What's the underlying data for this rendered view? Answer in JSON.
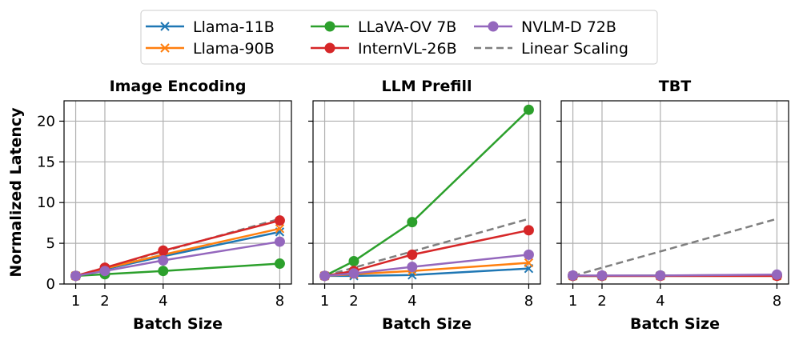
{
  "legend": {
    "location": "upper-center",
    "entries": [
      {
        "name": "Llama-11B",
        "color": "#1f77b4",
        "marker": "x",
        "dashed": false
      },
      {
        "name": "Llama-90B",
        "color": "#ff7f0e",
        "marker": "x",
        "dashed": false
      },
      {
        "name": "LLaVA-OV 7B",
        "color": "#2ca02c",
        "marker": "o",
        "dashed": false
      },
      {
        "name": "InternVL-26B",
        "color": "#d62728",
        "marker": "o",
        "dashed": false
      },
      {
        "name": "NVLM-D 72B",
        "color": "#9467bd",
        "marker": "o",
        "dashed": false
      },
      {
        "name": "Linear Scaling",
        "color": "#7f7f7f",
        "marker": "none",
        "dashed": true
      }
    ]
  },
  "chart_data": [
    {
      "type": "line",
      "title": "Image Encoding",
      "xlabel": "Batch Size",
      "ylabel": "Normalized Latency",
      "x": [
        1,
        2,
        4,
        8
      ],
      "xticks": [
        "1",
        "2",
        "4",
        "8"
      ],
      "yticks": [
        "0",
        "5",
        "10",
        "15",
        "20"
      ],
      "xlim": [
        0.6,
        8.4
      ],
      "ylim": [
        0,
        22.5
      ],
      "grid": true,
      "series": [
        {
          "name": "Linear Scaling",
          "values": [
            1,
            2,
            4,
            8
          ]
        },
        {
          "name": "Llama-11B",
          "values": [
            1.0,
            1.8,
            3.4,
            6.4
          ]
        },
        {
          "name": "Llama-90B",
          "values": [
            1.0,
            1.9,
            3.6,
            6.8
          ]
        },
        {
          "name": "LLaVA-OV 7B",
          "values": [
            1.0,
            1.2,
            1.6,
            2.5
          ]
        },
        {
          "name": "InternVL-26B",
          "values": [
            1.0,
            2.0,
            4.1,
            7.8
          ]
        },
        {
          "name": "NVLM-D 72B",
          "values": [
            1.0,
            1.6,
            2.9,
            5.2
          ]
        }
      ]
    },
    {
      "type": "line",
      "title": "LLM Prefill",
      "xlabel": "Batch Size",
      "ylabel": "",
      "x": [
        1,
        2,
        4,
        8
      ],
      "xticks": [
        "1",
        "2",
        "4",
        "8"
      ],
      "yticks": [],
      "xlim": [
        0.6,
        8.4
      ],
      "ylim": [
        0,
        22.5
      ],
      "grid": true,
      "series": [
        {
          "name": "Linear Scaling",
          "values": [
            1,
            2,
            4,
            8
          ]
        },
        {
          "name": "Llama-11B",
          "values": [
            1.0,
            1.0,
            1.1,
            1.9
          ]
        },
        {
          "name": "Llama-90B",
          "values": [
            1.0,
            1.2,
            1.6,
            2.6
          ]
        },
        {
          "name": "LLaVA-OV 7B",
          "values": [
            1.0,
            2.8,
            7.6,
            21.4
          ]
        },
        {
          "name": "InternVL-26B",
          "values": [
            1.0,
            1.6,
            3.6,
            6.6
          ]
        },
        {
          "name": "NVLM-D 72B",
          "values": [
            1.0,
            1.3,
            2.1,
            3.6
          ]
        }
      ]
    },
    {
      "type": "line",
      "title": "TBT",
      "xlabel": "Batch Size",
      "ylabel": "",
      "x": [
        1,
        2,
        4,
        8
      ],
      "xticks": [
        "1",
        "2",
        "4",
        "8"
      ],
      "yticks": [],
      "xlim": [
        0.6,
        8.4
      ],
      "ylim": [
        0,
        22.5
      ],
      "grid": true,
      "series": [
        {
          "name": "Linear Scaling",
          "values": [
            1,
            2,
            4,
            8
          ]
        },
        {
          "name": "Llama-11B",
          "values": [
            1.0,
            1.0,
            1.0,
            1.0
          ]
        },
        {
          "name": "Llama-90B",
          "values": [
            1.0,
            1.0,
            1.0,
            1.0
          ]
        },
        {
          "name": "LLaVA-OV 7B",
          "values": [
            1.0,
            1.0,
            1.05,
            1.1
          ]
        },
        {
          "name": "InternVL-26B",
          "values": [
            1.0,
            1.0,
            1.0,
            1.0
          ]
        },
        {
          "name": "NVLM-D 72B",
          "values": [
            1.05,
            1.05,
            1.05,
            1.15
          ]
        }
      ]
    }
  ]
}
